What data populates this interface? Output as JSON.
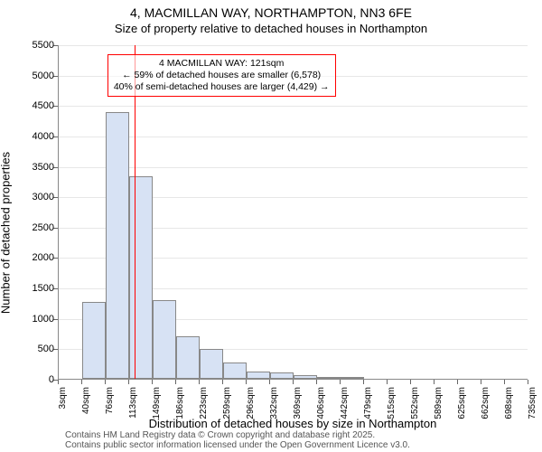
{
  "title_main": "4, MACMILLAN WAY, NORTHAMPTON, NN3 6FE",
  "title_sub": "Size of property relative to detached houses in Northampton",
  "y_label": "Number of detached properties",
  "x_label": "Distribution of detached houses by size in Northampton",
  "credit_line1": "Contains HM Land Registry data © Crown copyright and database right 2025.",
  "credit_line2": "Contains public sector information licensed under the Open Government Licence v3.0.",
  "chart": {
    "type": "histogram",
    "ylim": [
      0,
      5500
    ],
    "ytick_step": 500,
    "background_color": "#ffffff",
    "grid_color": "#e7e7e7",
    "bar_fill": "#d7e2f4",
    "bar_border": "#888888",
    "x_ticks": [
      "3sqm",
      "40sqm",
      "76sqm",
      "113sqm",
      "149sqm",
      "186sqm",
      "223sqm",
      "259sqm",
      "296sqm",
      "332sqm",
      "369sqm",
      "406sqm",
      "442sqm",
      "479sqm",
      "515sqm",
      "552sqm",
      "589sqm",
      "625sqm",
      "662sqm",
      "698sqm",
      "735sqm"
    ],
    "values": [
      0,
      1260,
      4380,
      3330,
      1300,
      700,
      490,
      270,
      120,
      110,
      60,
      30,
      20,
      0,
      0,
      0,
      0,
      0,
      0,
      0
    ],
    "marker": {
      "position_sqm": 121,
      "line_color": "#ff0000",
      "callout_border": "#ff0000",
      "callout_line1": "4 MACMILLAN WAY: 121sqm",
      "callout_line2": "← 59% of detached houses are smaller (6,578)",
      "callout_line3": "40% of semi-detached houses are larger (4,429) →"
    }
  }
}
